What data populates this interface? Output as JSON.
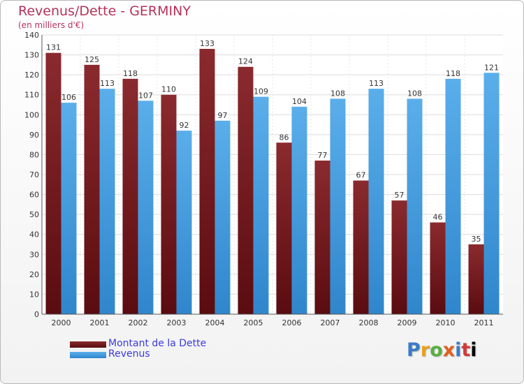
{
  "chart_data": {
    "type": "bar",
    "title": "Revenus/Dette - GERMINY",
    "subtitle": "(en milliers d'€)",
    "categories": [
      "2000",
      "2001",
      "2002",
      "2003",
      "2004",
      "2005",
      "2006",
      "2007",
      "2008",
      "2009",
      "2010",
      "2011"
    ],
    "series": [
      {
        "name": "Montant de la Dette",
        "color": "#7a1e22",
        "values": [
          131,
          125,
          118,
          110,
          133,
          124,
          86,
          77,
          67,
          57,
          46,
          35
        ]
      },
      {
        "name": "Revenus",
        "color": "#4aa3e6",
        "values": [
          106,
          113,
          107,
          92,
          97,
          109,
          104,
          108,
          113,
          108,
          118,
          121
        ]
      }
    ],
    "ylim": [
      0,
      140
    ],
    "yticks": [
      0,
      10,
      20,
      30,
      40,
      50,
      60,
      70,
      80,
      90,
      100,
      110,
      120,
      130,
      140
    ],
    "grid": true,
    "legend": "bottom-left"
  },
  "logo": {
    "letters": [
      "P",
      "r",
      "o",
      "x",
      "i",
      "t",
      "i"
    ]
  }
}
